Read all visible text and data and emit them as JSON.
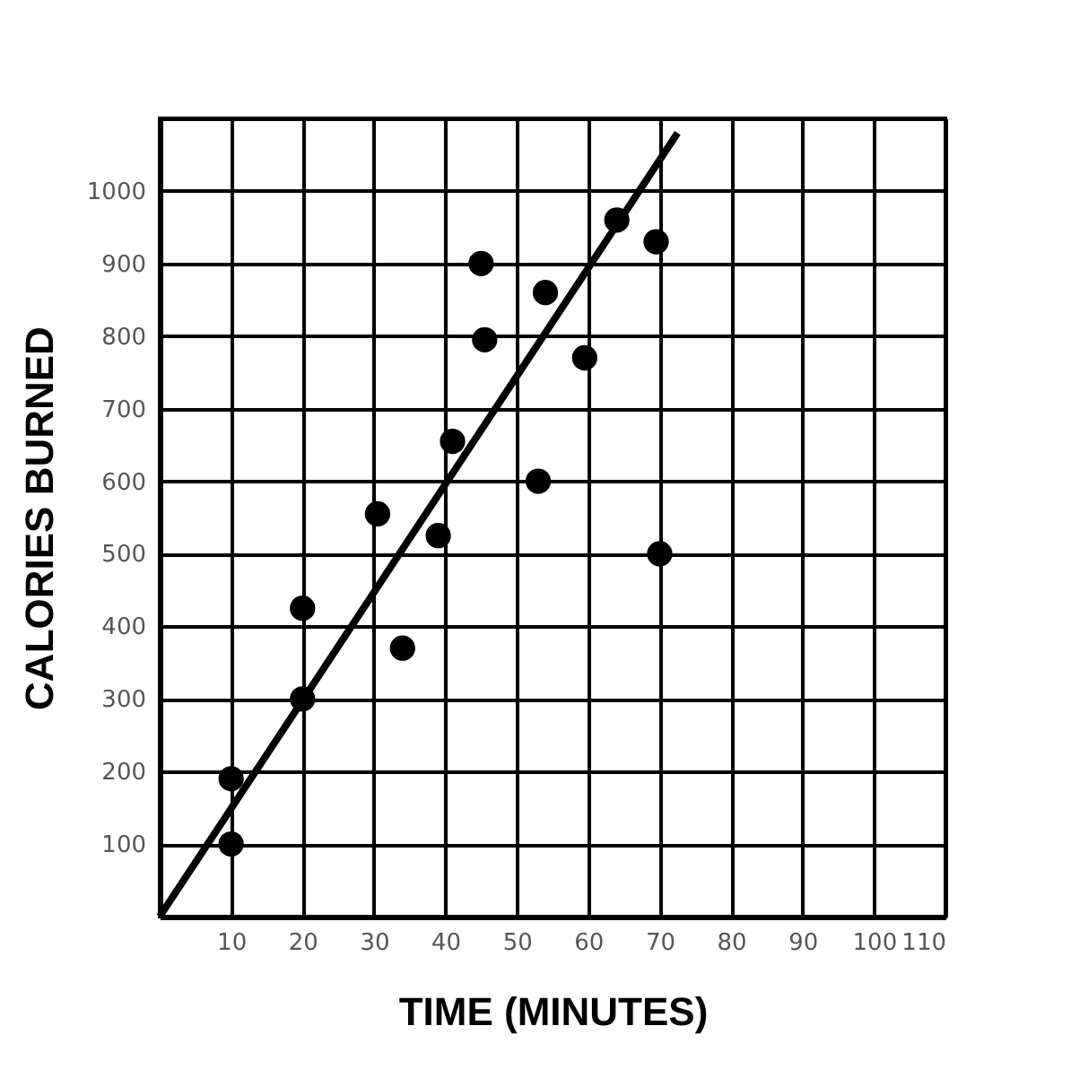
{
  "chart_data": {
    "type": "scatter",
    "xlabel": "TIME (MINUTES)",
    "ylabel": "CALORIES BURNED",
    "series": [
      {
        "color": "#000000",
        "marker": "circle",
        "x": [
          10,
          10,
          20,
          20,
          30.5,
          34,
          39,
          41,
          45,
          45.5,
          53,
          54,
          59.5,
          64,
          69.5,
          70
        ],
        "values": [
          100,
          190,
          300,
          425,
          555,
          370,
          525,
          655,
          900,
          795,
          600,
          860,
          770,
          960,
          930,
          500
        ]
      },
      {
        "type": "line",
        "color": "#000000",
        "x": [
          0,
          72.5
        ],
        "values": [
          0,
          1080
        ]
      }
    ],
    "xlim": [
      0,
      110
    ],
    "xticks": [
      10,
      20,
      30,
      40,
      50,
      60,
      70,
      80,
      90,
      100,
      110
    ],
    "ylim": [
      0,
      1100
    ],
    "yticks": [
      100,
      200,
      300,
      400,
      500,
      600,
      700,
      800,
      900,
      1000,
      {
        "value": 1100,
        "label": null
      }
    ],
    "grid": true
  }
}
